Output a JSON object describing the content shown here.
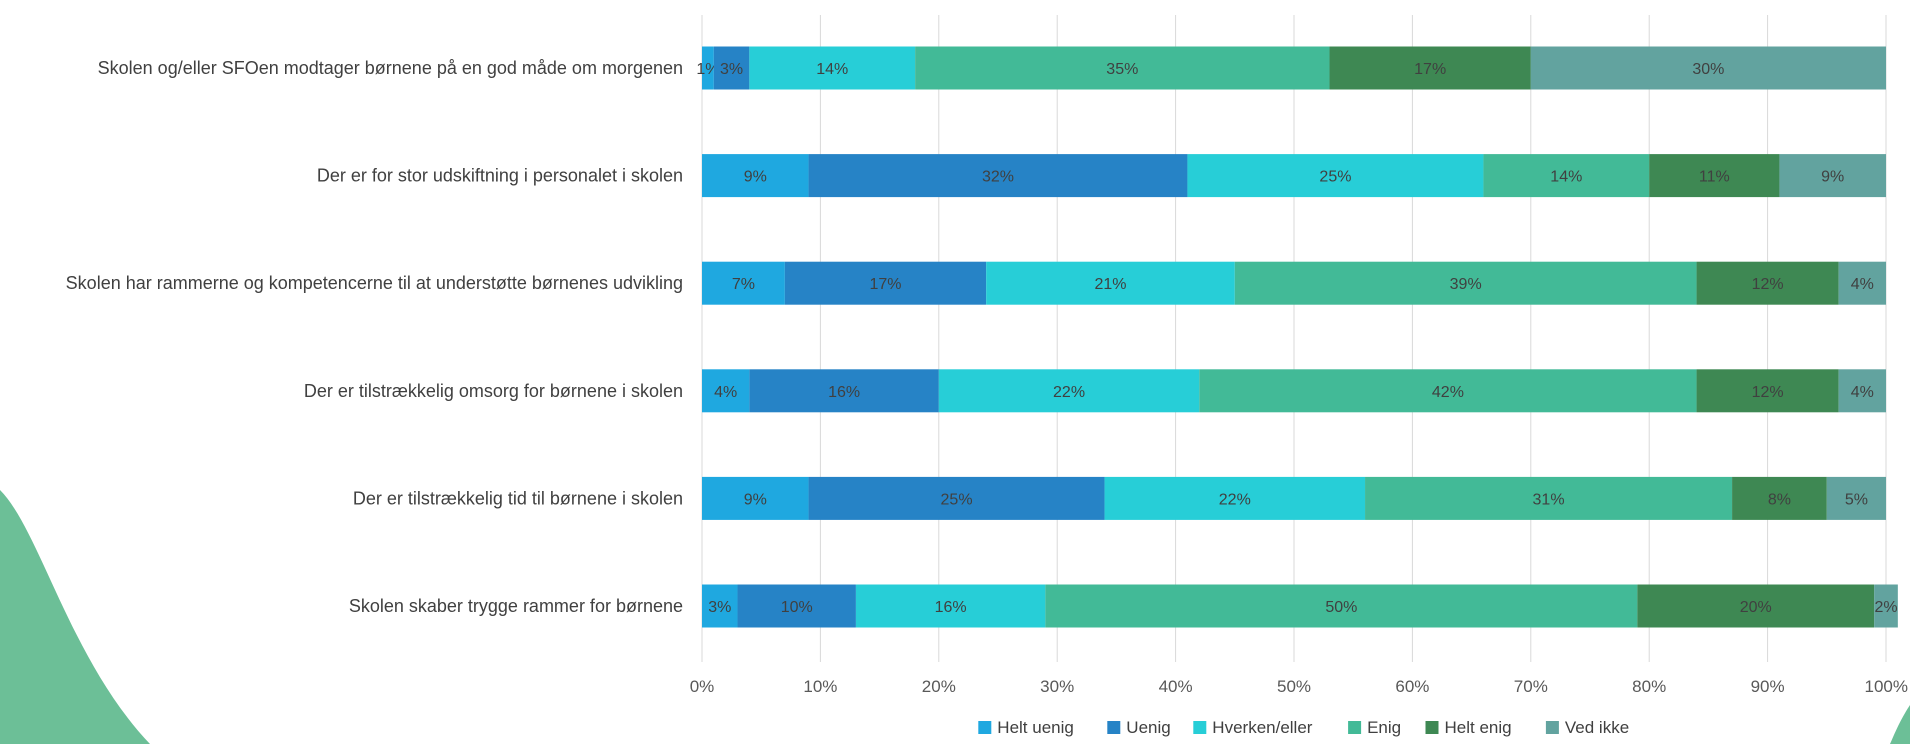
{
  "chart_data": {
    "type": "bar",
    "orientation": "horizontal",
    "stacked": "percent",
    "categories": [
      "Skolen og/eller SFOen modtager børnene på en god måde om morgenen",
      "Der er for stor udskiftning i personalet i skolen",
      "Skolen har rammerne og kompetencerne til at understøtte børnenes udvikling",
      "Der er tilstrækkelig omsorg for børnene i skolen",
      "Der er tilstrækkelig tid til børnene i skolen",
      "Skolen skaber trygge rammer for børnene"
    ],
    "series": [
      {
        "name": "Helt uenig",
        "color": "#1FA8E0",
        "values": [
          1,
          9,
          7,
          4,
          9,
          3
        ]
      },
      {
        "name": "Uenig",
        "color": "#2683C6",
        "values": [
          3,
          32,
          17,
          16,
          25,
          10
        ]
      },
      {
        "name": "Hverken/eller",
        "color": "#27CED7",
        "values": [
          14,
          25,
          21,
          22,
          22,
          16
        ]
      },
      {
        "name": "Enig",
        "color": "#42BA97",
        "values": [
          35,
          14,
          39,
          42,
          31,
          50
        ]
      },
      {
        "name": "Helt enig",
        "color": "#3E8853",
        "values": [
          17,
          11,
          12,
          12,
          8,
          20
        ]
      },
      {
        "name": "Ved ikke",
        "color": "#62A39F",
        "values": [
          30,
          9,
          4,
          4,
          5,
          2
        ]
      }
    ],
    "x_ticks": [
      "0%",
      "10%",
      "20%",
      "30%",
      "40%",
      "50%",
      "60%",
      "70%",
      "80%",
      "90%",
      "100%"
    ],
    "xlim": [
      0,
      100
    ],
    "grid": true,
    "legend_position": "bottom",
    "data_label_format": "{v}%"
  },
  "decoration": {
    "color": "#6CBF97"
  }
}
